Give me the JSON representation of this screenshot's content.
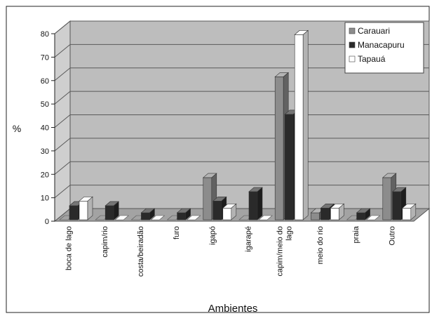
{
  "chart_data": {
    "type": "bar",
    "title": "",
    "xlabel": "Ambientes",
    "ylabel": "%",
    "ylim": [
      0,
      80
    ],
    "yticks": [
      0,
      10,
      20,
      30,
      40,
      50,
      60,
      70,
      80
    ],
    "grid": true,
    "three_d": true,
    "legend_position": "top-right",
    "categories": [
      "boca de lago",
      "capim/rio",
      "costa/beiradão",
      "furo",
      "igapó",
      "igarapé",
      "capim/meio do lago",
      "meio do rio",
      "praia",
      "Outro"
    ],
    "series": [
      {
        "name": "Carauari",
        "color": "#8c8c8c",
        "values": [
          0,
          0,
          0,
          0,
          18,
          0,
          61,
          3,
          0,
          18
        ]
      },
      {
        "name": "Manacapuru",
        "color": "#2a2a2a",
        "values": [
          6,
          6,
          3,
          3,
          8,
          12,
          45,
          5,
          3,
          12
        ]
      },
      {
        "name": "Tapauá",
        "color": "#ffffff",
        "values": [
          8,
          0,
          0,
          0,
          5,
          0,
          79,
          5,
          0,
          5
        ]
      }
    ]
  }
}
